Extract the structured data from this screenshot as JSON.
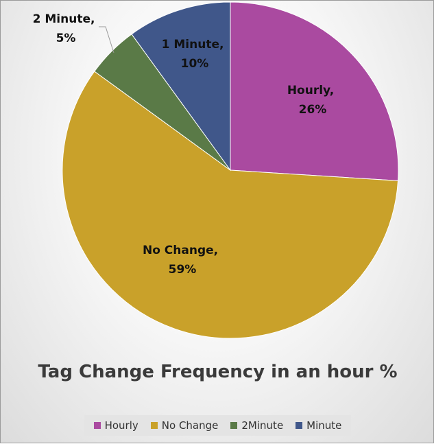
{
  "chart_data": {
    "type": "pie",
    "title": "Tag Change Frequency in an hour %",
    "categories": [
      "Hourly",
      "No Change",
      "2Minute",
      "Minute"
    ],
    "values": [
      26,
      59,
      5,
      10
    ],
    "colors": [
      "#AA4AA0",
      "#C9A12A",
      "#5A7A47",
      "#40578A"
    ],
    "data_labels": [
      {
        "name": "Hourly,",
        "pct": "26%"
      },
      {
        "name": "No Change,",
        "pct": "59%"
      },
      {
        "name": "2 Minute,",
        "pct": "5%"
      },
      {
        "name": "1 Minute,",
        "pct": "10%"
      }
    ],
    "legend": {
      "position": "bottom",
      "entries": [
        "Hourly",
        "No Change",
        "2Minute",
        "Minute"
      ]
    },
    "start_angle_deg": 0,
    "direction": "clockwise"
  }
}
